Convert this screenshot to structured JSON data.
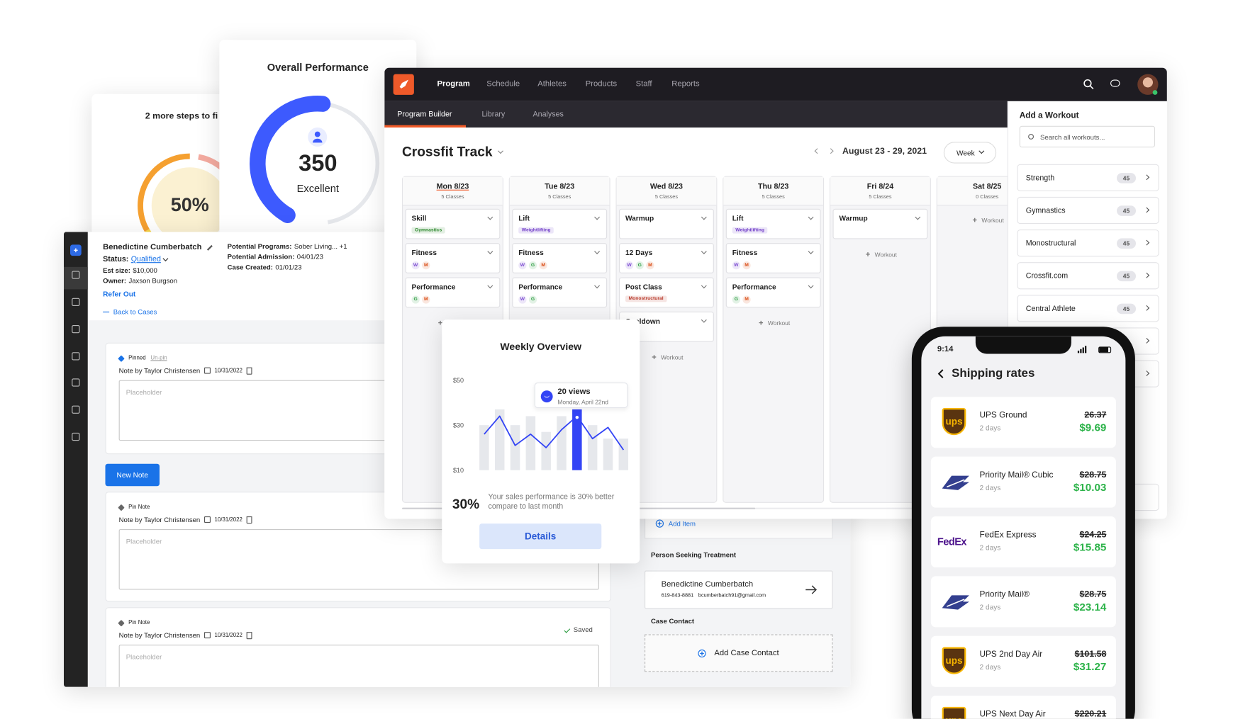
{
  "progress_card": {
    "title": "2 more steps to fi",
    "value": "50%"
  },
  "performance_card": {
    "title": "Overall Performance",
    "score": "350",
    "rating": "Excellent"
  },
  "case_app": {
    "name": "Benedictine Cumberbatch",
    "status_label": "Status:",
    "status": "Qualified",
    "fields": [
      {
        "label": "Est size:",
        "value": "$10,000"
      },
      {
        "label": "Owner:",
        "value": "Jaxson Burgson"
      }
    ],
    "details": [
      {
        "label": "Potential Programs:",
        "value": "Sober Living... +1"
      },
      {
        "label": "Potential Admission:",
        "value": "04/01/23"
      },
      {
        "label": "Case Created:",
        "value": "01/01/23"
      }
    ],
    "refer": "Refer Out",
    "back": "Back to Cases",
    "new_note": "New Note",
    "notes": [
      {
        "pin": "Pinned",
        "unpin": "Un-pin",
        "author": "Note by Taylor Christensen",
        "date": "10/31/2022",
        "placeholder": "Placeholder"
      },
      {
        "pin": "Pin Note",
        "author": "Note by Taylor Christensen",
        "date": "10/31/2022",
        "placeholder": "Placeholder"
      },
      {
        "pin": "Pin Note",
        "author": "Note by Taylor Christensen",
        "date": "10/31/2022",
        "placeholder": "Placeholder",
        "status": "Saved"
      }
    ],
    "add_item": "Add Item",
    "person_heading": "Person Seeking Treatment",
    "person": {
      "name": "Benedictine Cumberbatch",
      "phone": "619-843-8881",
      "email": "bcumberbatch91@gmail.com"
    },
    "contact_heading": "Case Contact",
    "add_contact": "Add Case Contact"
  },
  "program_app": {
    "nav": [
      "Program",
      "Schedule",
      "Athletes",
      "Products",
      "Staff",
      "Reports"
    ],
    "subnav": [
      "Program Builder",
      "Library",
      "Analyses"
    ],
    "title": "Crossfit Track",
    "date_range": "August 23 - 29, 2021",
    "view": "Week",
    "add_label": "Workout",
    "tag_colors": {
      "Gymnastics": "#2f8a2f",
      "Weightlifting": "#7340c9",
      "Monostructural": "#b8392a"
    },
    "letter_colors": {
      "W": "#7b4bd1",
      "G": "#2f9e44",
      "M": "#d9480f"
    },
    "days": [
      {
        "day": "Mon 8/23",
        "classes": "5 Classes",
        "blocks": [
          {
            "name": "Skill",
            "tags": [
              "Gymnastics"
            ]
          },
          {
            "name": "Fitness",
            "letters": [
              "W",
              "M"
            ]
          },
          {
            "name": "Performance",
            "letters": [
              "G",
              "M"
            ]
          }
        ]
      },
      {
        "day": "Tue 8/23",
        "classes": "5 Classes",
        "blocks": [
          {
            "name": "Lift",
            "tags": [
              "Weightlifting"
            ]
          },
          {
            "name": "Fitness",
            "letters": [
              "W",
              "G",
              "M"
            ]
          },
          {
            "name": "Performance",
            "letters": [
              "W",
              "G"
            ]
          }
        ]
      },
      {
        "day": "Wed 8/23",
        "classes": "5 Classes",
        "blocks": [
          {
            "name": "Warmup"
          },
          {
            "name": "12 Days",
            "letters": [
              "W",
              "G",
              "M"
            ]
          },
          {
            "name": "Post Class",
            "tags": [
              "Monostructural"
            ]
          },
          {
            "name": "Cooldown"
          }
        ]
      },
      {
        "day": "Thu 8/23",
        "classes": "5 Classes",
        "blocks": [
          {
            "name": "Lift",
            "tags": [
              "Weightlifting"
            ]
          },
          {
            "name": "Fitness",
            "letters": [
              "W",
              "M"
            ]
          },
          {
            "name": "Performance",
            "letters": [
              "G",
              "M"
            ]
          }
        ]
      },
      {
        "day": "Fri 8/24",
        "classes": "5 Classes",
        "blocks": [
          {
            "name": "Warmup"
          }
        ]
      },
      {
        "day": "Sat 8/25",
        "classes": "0 Classes",
        "blocks": []
      }
    ],
    "sidebar": {
      "title": "Add a Workout",
      "search": "Search all workouts...",
      "categories": [
        {
          "name": "Strength",
          "count": 45
        },
        {
          "name": "Gymnastics",
          "count": 45
        },
        {
          "name": "Monostructural",
          "count": 45
        },
        {
          "name": "Crossfit.com",
          "count": 45
        },
        {
          "name": "Central Athlete",
          "count": 45
        }
      ]
    }
  },
  "weekly_overview": {
    "title": "Weekly Overview",
    "tooltip": {
      "value": "20 views",
      "date": "Monday, April 22nd"
    },
    "chart": {
      "ylim": [
        10,
        50
      ],
      "yticks": [
        {
          "value": 50,
          "label": "$50"
        },
        {
          "value": 30,
          "label": "$30"
        },
        {
          "value": 10,
          "label": "$10"
        }
      ],
      "bars": [
        30,
        37,
        30,
        34,
        27,
        34,
        37,
        30,
        24,
        24
      ],
      "line": [
        26,
        34,
        21,
        26,
        20,
        28,
        34,
        24,
        29,
        19
      ],
      "highlight": 6,
      "bar_color": "#e6e8ec",
      "highlight_color": "#3344f5",
      "line_color": "#3344f5"
    },
    "percent": "30%",
    "summary": "Your sales performance is 30% better compare to last month",
    "button": "Details"
  },
  "phone": {
    "time": "9:14",
    "title": "Shipping rates",
    "rates": [
      {
        "logo": "ups",
        "service": "UPS Ground",
        "days": "2 days",
        "old_price": "26.37",
        "price": "$9.69"
      },
      {
        "service": "Priority Mail® Cubic",
        "days": "2 days",
        "old_price": "$28.75",
        "price": "$10.03"
      },
      {
        "logo": "FedEx",
        "service": "FedEx Express",
        "days": "2 days",
        "old_price": "$24.25",
        "price": "$15.85"
      },
      {
        "service": "Priority Mail®",
        "days": "2 days",
        "old_price": "$28.75",
        "price": "$23.14"
      },
      {
        "logo": "ups",
        "service": "UPS 2nd Day Air",
        "days": "2 days",
        "old_price": "$101.58",
        "price": "$31.27"
      },
      {
        "logo": "ups",
        "service": "UPS Next Day Air",
        "old_price": "$220.21"
      }
    ]
  }
}
